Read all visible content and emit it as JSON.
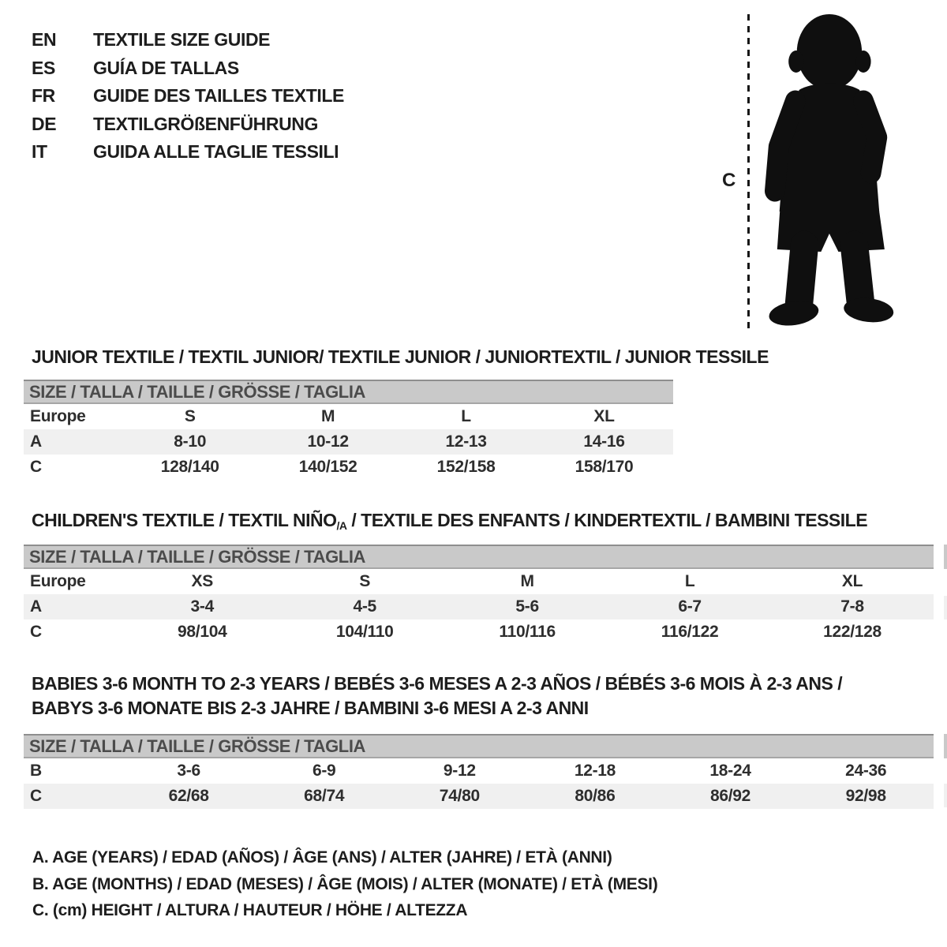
{
  "colors": {
    "ink": "#1d1d1d",
    "size_bar_bg": "#c9c9c9",
    "size_bar_text": "#4b4b4b",
    "shaded_row_bg": "#f0f0f0",
    "silhouette": "#0f0f0f"
  },
  "title_block": {
    "items": [
      {
        "code": "EN",
        "label": "TEXTILE SIZE GUIDE"
      },
      {
        "code": "ES",
        "label": "GUÍA DE TALLAS"
      },
      {
        "code": "FR",
        "label": "GUIDE DES TAILLES TEXTILE"
      },
      {
        "code": "DE",
        "label": "TEXTILGRÖßENFÜHRUNG"
      },
      {
        "code": "IT",
        "label": "GUIDA ALLE TAGLIE TESSILI"
      }
    ]
  },
  "figure": {
    "measure_label": "C",
    "icon": "toddler-silhouette"
  },
  "sections": [
    {
      "heading": "JUNIOR TEXTILE / TEXTIL JUNIOR/ TEXTILE JUNIOR / JUNIORTEXTIL / JUNIOR TESSILE",
      "size_header": "SIZE / TALLA / TAILLE / GRÖSSE / TAGLIA",
      "rows": [
        {
          "label": "Europe",
          "values": [
            "S",
            "M",
            "L",
            "XL"
          ],
          "shaded": false
        },
        {
          "label": "A",
          "values": [
            "8-10",
            "10-12",
            "12-13",
            "14-16"
          ],
          "shaded": true
        },
        {
          "label": "C",
          "values": [
            "128/140",
            "140/152",
            "152/158",
            "158/170"
          ],
          "shaded": false
        }
      ]
    },
    {
      "heading_pre": "CHILDREN'S TEXTILE / TEXTIL NIÑO",
      "heading_sub": "/A",
      "heading_post": " / TEXTILE DES ENFANTS / KINDERTEXTIL / BAMBINI TESSILE",
      "size_header": "SIZE / TALLA / TAILLE / GRÖSSE / TAGLIA",
      "rows": [
        {
          "label": "Europe",
          "values": [
            "XS",
            "S",
            "M",
            "L",
            "XL"
          ],
          "shaded": false
        },
        {
          "label": "A",
          "values": [
            "3-4",
            "4-5",
            "5-6",
            "6-7",
            "7-8"
          ],
          "shaded": true
        },
        {
          "label": "C",
          "values": [
            "98/104",
            "104/110",
            "110/116",
            "116/122",
            "122/128"
          ],
          "shaded": false
        }
      ]
    },
    {
      "heading_line1": "BABIES 3-6 MONTH TO 2-3 YEARS / BEBÉS 3-6 MESES A 2-3 AÑOS / BÉBÉS 3-6 MOIS À 2-3 ANS /",
      "heading_line2": "BABYS 3-6 MONATE BIS 2-3 JAHRE / BAMBINI 3-6 MESI A 2-3 ANNI",
      "size_header": "SIZE / TALLA / TAILLE / GRÖSSE / TAGLIA",
      "rows": [
        {
          "label": "B",
          "values": [
            "3-6",
            "6-9",
            "9-12",
            "12-18",
            "18-24",
            "24-36"
          ],
          "shaded": false
        },
        {
          "label": "C",
          "values": [
            "62/68",
            "68/74",
            "74/80",
            "80/86",
            "86/92",
            "92/98"
          ],
          "shaded": true
        }
      ]
    }
  ],
  "legend": {
    "items": [
      "A. AGE (YEARS) / EDAD (AÑOS) / ÂGE (ANS) / ALTER (JAHRE) / ETÀ (ANNI)",
      "B. AGE (MONTHS) / EDAD (MESES) / ÂGE (MOIS) / ALTER (MONATE) / ETÀ (MESI)",
      "C. (cm) HEIGHT / ALTURA / HAUTEUR / HÖHE / ALTEZZA"
    ]
  }
}
